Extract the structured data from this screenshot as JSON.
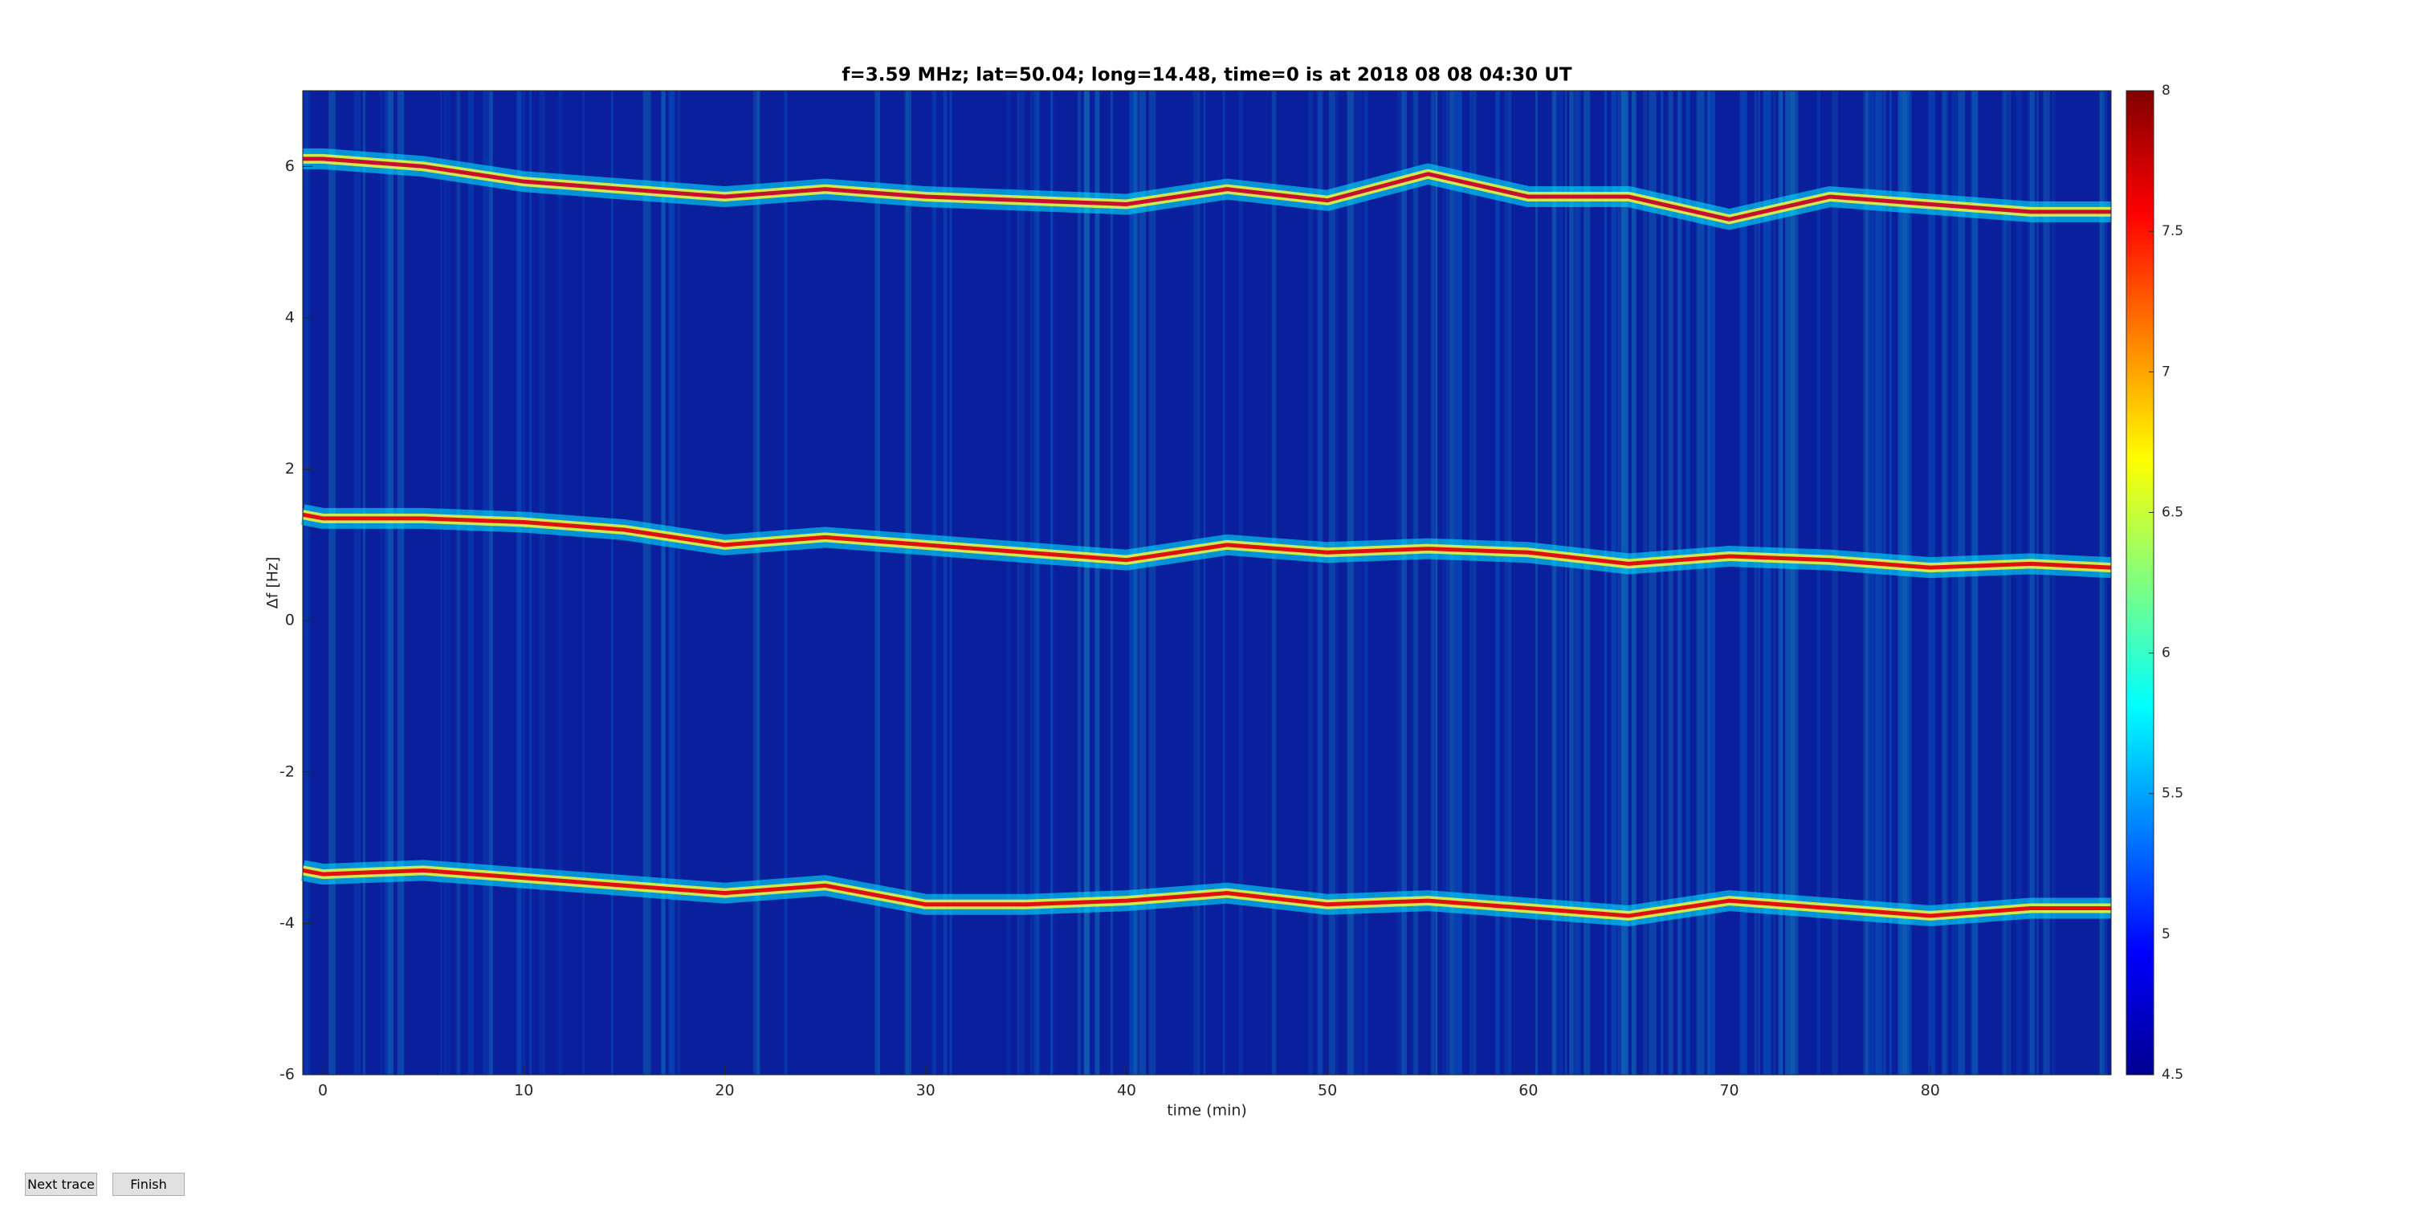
{
  "chart_data": {
    "type": "line",
    "title": "f=3.59 MHz;  lat=50.04; long=14.48, time=0 is at 2018 08 08 04:30 UT",
    "xlabel": "time (min)",
    "ylabel": "Δf [Hz]",
    "x": [
      -1,
      0,
      5,
      10,
      15,
      20,
      25,
      30,
      35,
      40,
      45,
      50,
      55,
      60,
      65,
      70,
      75,
      80,
      85,
      89
    ],
    "series": [
      {
        "color": "#c8102e",
        "values": [
          6.1,
          6.1,
          6.0,
          5.8,
          5.7,
          5.6,
          5.7,
          5.6,
          5.55,
          5.5,
          5.7,
          5.55,
          5.9,
          5.6,
          5.6,
          5.3,
          5.6,
          5.5,
          5.4,
          5.4
        ]
      },
      {
        "color": "#e01010",
        "values": [
          1.4,
          1.35,
          1.35,
          1.3,
          1.2,
          1.0,
          1.1,
          1.0,
          0.9,
          0.8,
          1.0,
          0.9,
          0.95,
          0.9,
          0.75,
          0.85,
          0.8,
          0.7,
          0.75,
          0.7
        ]
      },
      {
        "color": "#e01010",
        "values": [
          -3.3,
          -3.35,
          -3.3,
          -3.4,
          -3.5,
          -3.6,
          -3.5,
          -3.75,
          -3.75,
          -3.7,
          -3.6,
          -3.75,
          -3.7,
          -3.8,
          -3.9,
          -3.7,
          -3.8,
          -3.9,
          -3.8,
          -3.8
        ]
      }
    ],
    "xlim": [
      -1,
      89
    ],
    "xticks": [
      0,
      10,
      20,
      30,
      40,
      50,
      60,
      70,
      80
    ],
    "ylim": [
      -6,
      7
    ],
    "yticks": [
      -6,
      -4,
      -2,
      0,
      2,
      4,
      6
    ],
    "background": "#0a1f9c",
    "colorbar": {
      "lim": [
        4.5,
        8
      ],
      "ticks": [
        4.5,
        5,
        5.5,
        6,
        6.5,
        7,
        7.5,
        8
      ],
      "colors": [
        "#00008f",
        "#0000ff",
        "#0080ff",
        "#00ffff",
        "#80ff80",
        "#ffff00",
        "#ff8000",
        "#ff0000",
        "#800000"
      ]
    }
  },
  "buttons": [
    "Next trace",
    "Finish"
  ]
}
